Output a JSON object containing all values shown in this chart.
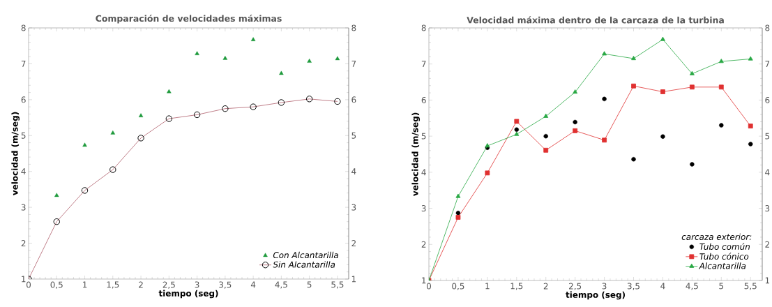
{
  "chart_data": [
    {
      "type": "line",
      "title": "Comparación de velocidades máximas",
      "xlabel": "tiempo (seg)",
      "ylabel": "velocidad (m/seg)",
      "xlim": [
        0,
        5.7
      ],
      "ylim": [
        1,
        8
      ],
      "y2lim": [
        1,
        8
      ],
      "xticks": [
        0,
        {
          "value": 0.5,
          "label": "0,5"
        },
        1,
        {
          "value": 1.5,
          "label": "1,5"
        },
        2,
        {
          "value": 2.5,
          "label": "2,5"
        },
        3,
        {
          "value": 3.5,
          "label": "3,5"
        },
        4,
        {
          "value": 4.5,
          "label": "4,5"
        },
        5,
        {
          "value": 5.5,
          "label": "5,5"
        }
      ],
      "yticks": [
        1,
        2,
        3,
        4,
        5,
        6,
        7,
        8
      ],
      "y2ticks": [
        1,
        2,
        3,
        4,
        5,
        6,
        7,
        8
      ],
      "grid": false,
      "legend": "bottom right",
      "series": [
        {
          "name": "Con Alcantarilla",
          "type": "scatter",
          "marker": "triangle",
          "color": "#1e9a3c",
          "x": [
            0.5,
            1,
            1.5,
            2,
            2.5,
            3,
            3.5,
            4,
            4.5,
            5,
            5.5
          ],
          "values": [
            3.33,
            4.73,
            5.07,
            5.55,
            6.22,
            7.28,
            7.15,
            7.67,
            6.73,
            7.07,
            7.14
          ]
        },
        {
          "name": "Sin Alcantarilla",
          "marker": "circle",
          "color": "#b0606c",
          "x": [
            0,
            0.5,
            1,
            1.5,
            2,
            2.5,
            3,
            3.5,
            4,
            4.5,
            5,
            5.5
          ],
          "values": [
            1,
            2.6,
            3.47,
            4.05,
            4.93,
            5.47,
            5.58,
            5.75,
            5.8,
            5.92,
            6.02,
            5.95
          ]
        }
      ]
    },
    {
      "type": "line",
      "title": "Velocidad máxima dentro de la carcaza de la turbina",
      "xlabel": "tiempo (seg)",
      "ylabel": "velocidad (m/seg)",
      "xlim": [
        0,
        5.7
      ],
      "ylim": [
        1,
        8
      ],
      "y2lim": [
        1,
        8
      ],
      "xticks": [
        0,
        {
          "value": 0.5,
          "label": "0,5"
        },
        1,
        {
          "value": 1.5,
          "label": "1,5"
        },
        2,
        {
          "value": 2.5,
          "label": "2,5"
        },
        3,
        {
          "value": 3.5,
          "label": "3,5"
        },
        4,
        {
          "value": 4.5,
          "label": "4,5"
        },
        5,
        {
          "value": 5.5,
          "label": "5,5"
        }
      ],
      "yticks": [
        1,
        2,
        3,
        4,
        5,
        6,
        7,
        8
      ],
      "y2ticks": [
        1,
        2,
        3,
        4,
        5,
        6,
        7,
        8
      ],
      "grid": false,
      "legend": "bottom right",
      "legend_title": "carcaza exterior:",
      "series": [
        {
          "name": "Tubo común",
          "type": "scatter",
          "marker": "circle",
          "color": "#000000",
          "x": [
            0.5,
            1,
            1.5,
            2,
            2.5,
            3,
            3.5,
            4,
            4.5,
            5,
            5.5
          ],
          "values": [
            2.87,
            4.68,
            5.18,
            5.0,
            5.39,
            6.03,
            4.36,
            4.99,
            4.22,
            5.3,
            4.78
          ]
        },
        {
          "name": "Tubo cónico",
          "marker": "square",
          "color": "#e03030",
          "x": [
            0,
            0.5,
            1,
            1.5,
            2,
            2.5,
            3,
            3.5,
            4,
            4.5,
            5,
            5.5
          ],
          "values": [
            1,
            2.75,
            3.98,
            5.41,
            4.61,
            5.15,
            4.89,
            6.39,
            6.23,
            6.36,
            6.36,
            5.28
          ]
        },
        {
          "name": "Alcantarilla",
          "marker": "triangle",
          "color": "#28a844",
          "x": [
            0,
            0.5,
            1,
            1.5,
            2,
            2.5,
            3,
            3.5,
            4,
            4.5,
            5,
            5.5
          ],
          "values": [
            1,
            3.33,
            4.73,
            5.05,
            5.55,
            6.22,
            7.28,
            7.15,
            7.68,
            6.73,
            7.07,
            7.14
          ]
        }
      ]
    }
  ]
}
